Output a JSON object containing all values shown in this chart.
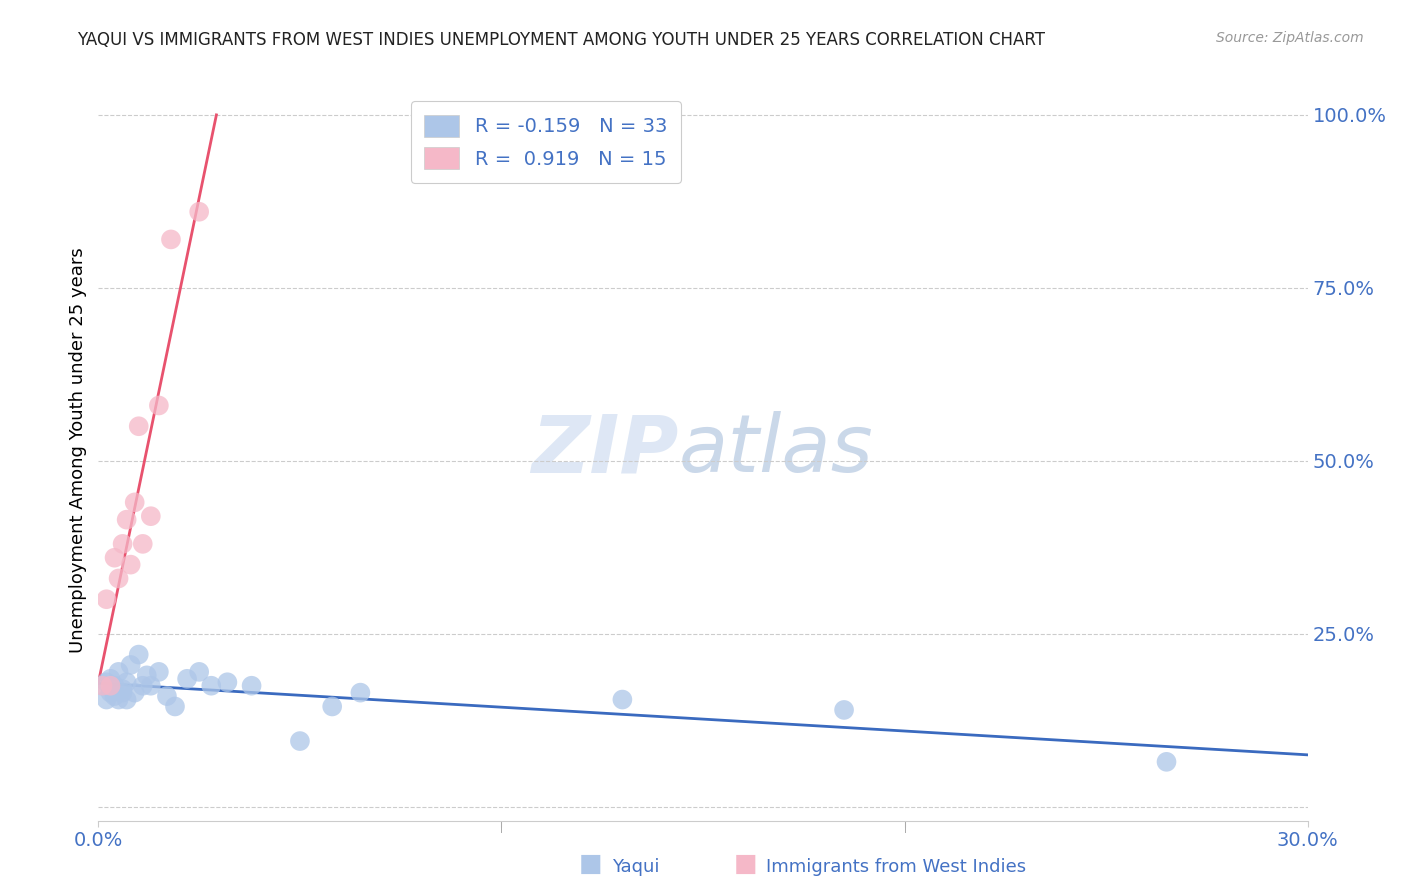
{
  "title": "YAQUI VS IMMIGRANTS FROM WEST INDIES UNEMPLOYMENT AMONG YOUTH UNDER 25 YEARS CORRELATION CHART",
  "source": "Source: ZipAtlas.com",
  "ylabel": "Unemployment Among Youth under 25 years",
  "xlim": [
    0.0,
    0.3
  ],
  "ylim": [
    -0.02,
    1.05
  ],
  "watermark_zip": "ZIP",
  "watermark_atlas": "atlas",
  "blue_color": "#adc6e8",
  "pink_color": "#f5b8c8",
  "blue_line_color": "#3a6abf",
  "pink_line_color": "#e8526e",
  "grid_color": "#cccccc",
  "right_tick_color": "#4472c4",
  "title_color": "#222222",
  "source_color": "#999999",
  "yaqui_x": [
    0.001,
    0.002,
    0.002,
    0.003,
    0.003,
    0.004,
    0.004,
    0.005,
    0.005,
    0.006,
    0.006,
    0.007,
    0.007,
    0.008,
    0.009,
    0.01,
    0.011,
    0.012,
    0.013,
    0.015,
    0.017,
    0.019,
    0.022,
    0.025,
    0.028,
    0.032,
    0.038,
    0.05,
    0.058,
    0.065,
    0.13,
    0.185,
    0.265
  ],
  "yaqui_y": [
    0.175,
    0.18,
    0.155,
    0.185,
    0.165,
    0.16,
    0.175,
    0.195,
    0.155,
    0.165,
    0.17,
    0.18,
    0.155,
    0.205,
    0.165,
    0.22,
    0.175,
    0.19,
    0.175,
    0.195,
    0.16,
    0.145,
    0.185,
    0.195,
    0.175,
    0.18,
    0.175,
    0.095,
    0.145,
    0.165,
    0.155,
    0.14,
    0.065
  ],
  "wi_x": [
    0.001,
    0.002,
    0.003,
    0.004,
    0.005,
    0.006,
    0.007,
    0.008,
    0.009,
    0.01,
    0.011,
    0.013,
    0.015,
    0.018,
    0.025
  ],
  "wi_y": [
    0.175,
    0.3,
    0.175,
    0.36,
    0.33,
    0.38,
    0.415,
    0.35,
    0.44,
    0.55,
    0.38,
    0.42,
    0.58,
    0.82,
    0.86
  ],
  "grid_vals": [
    0.0,
    0.25,
    0.5,
    0.75,
    1.0
  ],
  "grid_labels": [
    "",
    "25.0%",
    "50.0%",
    "75.0%",
    "100.0%"
  ],
  "xtick_positions": [
    0.0,
    0.1,
    0.2,
    0.3
  ],
  "xtick_labels": [
    "0.0%",
    "",
    "",
    "30.0%"
  ]
}
